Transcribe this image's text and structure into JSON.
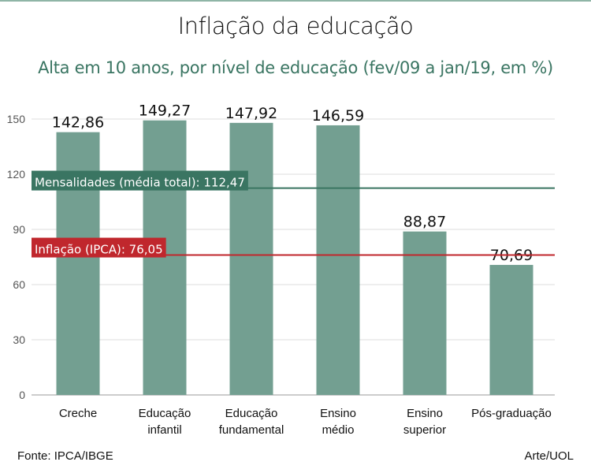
{
  "chart_data": {
    "type": "bar",
    "title": "Inflação da educação",
    "subtitle": "Alta em 10 anos, por nível de educação (fev/09 a jan/19, em %)",
    "categories": [
      [
        "Creche"
      ],
      [
        "Educação",
        "infantil"
      ],
      [
        "Educação",
        "fundamental"
      ],
      [
        "Ensino",
        "médio"
      ],
      [
        "Ensino",
        "superior"
      ],
      [
        "Pós-graduação"
      ]
    ],
    "values": [
      142.86,
      149.27,
      147.92,
      146.59,
      88.87,
      70.69
    ],
    "value_labels": [
      "142,86",
      "149,27",
      "147,92",
      "146,59",
      "88,87",
      "70,69"
    ],
    "ylim": [
      0,
      150
    ],
    "yticks": [
      0,
      30,
      60,
      90,
      120,
      150
    ],
    "grid": true,
    "reference_lines": [
      {
        "label": "Mensalidades (média total): 112,47",
        "value": 112.47,
        "color": "#3a7562"
      },
      {
        "label": "Inflação (IPCA): 76,05",
        "value": 76.05,
        "color": "#c0272d"
      }
    ],
    "bar_color": "#739f91"
  },
  "footer": {
    "source": "Fonte: IPCA/IBGE",
    "credit": "Arte/UOL"
  }
}
